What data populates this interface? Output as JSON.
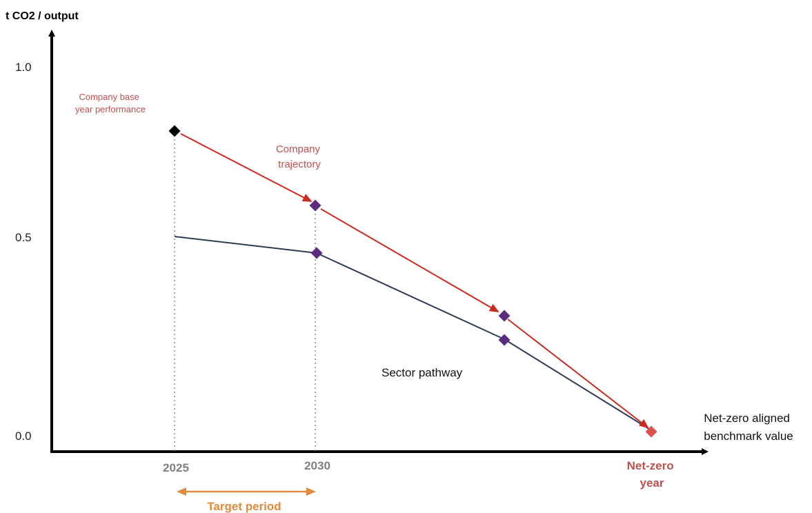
{
  "chart_data": {
    "type": "line",
    "ylabel": "t CO2 / output",
    "xlabel": "",
    "ylim": [
      0,
      1.0
    ],
    "y_ticks": [
      "1.0",
      "0.5",
      "0.0"
    ],
    "x_tick_labels": [
      {
        "label": "2025",
        "color": "#7f7f7f"
      },
      {
        "label": "2030",
        "color": "#7f7f7f"
      },
      {
        "label": "Net-zero year",
        "color": "#c0504d"
      }
    ],
    "series": [
      {
        "name": "Company trajectory",
        "color": "#cc2a1d",
        "points": [
          {
            "x": "2025",
            "y": 0.81
          },
          {
            "x": "2030",
            "y": 0.59
          },
          {
            "x": "",
            "y": 0.3
          },
          {
            "x": "Net-zero year",
            "y": 0.01
          }
        ]
      },
      {
        "name": "Sector pathway",
        "color": "#2e3b55",
        "points": [
          {
            "x": "2025",
            "y": 0.5
          },
          {
            "x": "2030",
            "y": 0.46
          },
          {
            "x": "",
            "y": 0.24
          },
          {
            "x": "Net-zero year",
            "y": 0.01
          }
        ]
      }
    ],
    "annotations": {
      "base_year": "Company base year performance",
      "company_trajectory": "Company trajectory",
      "sector_pathway": "Sector pathway",
      "benchmark": "Net-zero aligned benchmark value",
      "target_period": "Target period"
    },
    "colors": {
      "company": "#cc2a1d",
      "sector": "#2e3b55",
      "milestone_marker": "#5b2c80",
      "base_marker": "#000000",
      "netzero_marker": "#d9534f",
      "target_period": "#e08a3c",
      "annotation_red": "#c0504d"
    }
  }
}
